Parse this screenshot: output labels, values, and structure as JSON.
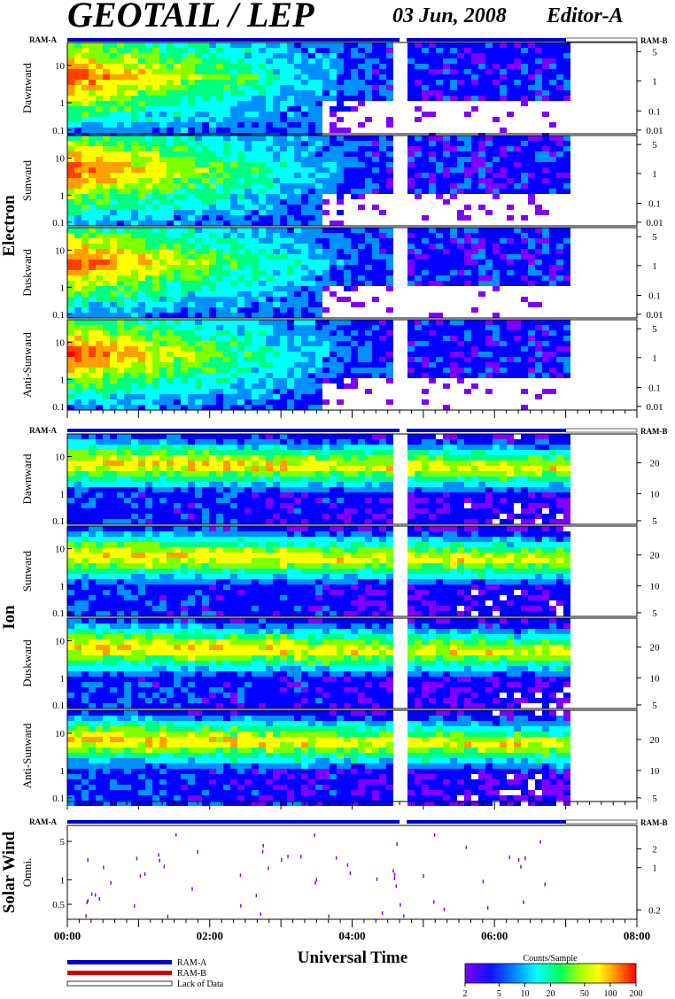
{
  "header": {
    "title": "GEOTAIL / LEP",
    "date": "03 Jun, 2008",
    "editor": "Editor-A"
  },
  "chart_data": {
    "type": "heatmap",
    "x_axis": {
      "title": "Universal Time",
      "range": [
        "00:00",
        "08:00"
      ],
      "major_ticks": [
        "00:00",
        "02:00",
        "04:00",
        "06:00",
        "08:00"
      ],
      "data_end": "07:00",
      "data_gap": [
        "04:40",
        "04:46"
      ]
    },
    "ram_labels": {
      "left": "RAM-A",
      "right": "RAM-B"
    },
    "groups": [
      {
        "name": "Electron",
        "left_ticks": [
          "10",
          "1",
          "0.1"
        ],
        "right_ticks": [
          "5",
          "1",
          "0.1",
          "0.01"
        ],
        "panels": [
          {
            "label": "Dawnward"
          },
          {
            "label": "Sunward"
          },
          {
            "label": "Duskward"
          },
          {
            "label": "Anti-Sunward"
          }
        ]
      },
      {
        "name": "Ion",
        "left_ticks": [
          "10",
          "1",
          "0.1"
        ],
        "right_ticks": [
          "20",
          "10",
          "5"
        ],
        "panels": [
          {
            "label": "Dawnward"
          },
          {
            "label": "Sunward"
          },
          {
            "label": "Duskward"
          },
          {
            "label": "Anti-Sunward"
          }
        ]
      },
      {
        "name": "Solar Wind",
        "left_ticks": [
          "5",
          "1",
          "0.5"
        ],
        "right_ticks": [
          "2",
          "1",
          "0.2"
        ],
        "panels": [
          {
            "label": "Omni."
          }
        ]
      }
    ],
    "legend": {
      "ram_a": "RAM-A",
      "ram_b": "RAM-B",
      "lack": "Lack of Data",
      "ram_a_color": "#0000c8",
      "ram_b_color": "#d00000"
    },
    "colorbar": {
      "title": "Counts/Sample",
      "ticks": [
        "2",
        "5",
        "10",
        "20",
        "50",
        "100",
        "200"
      ],
      "colors": [
        "#7f00ff",
        "#0000ff",
        "#0090ff",
        "#00ffff",
        "#00ff80",
        "#80ff00",
        "#ffff00",
        "#ffa000",
        "#ff4000",
        "#ff0000"
      ]
    }
  }
}
